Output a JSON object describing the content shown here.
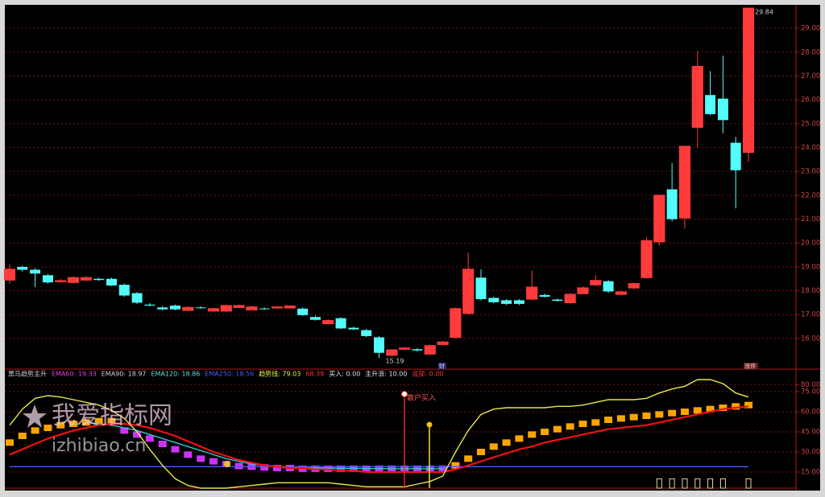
{
  "chart_data": [
    {
      "type": "candlestick",
      "up_color": "#ff3b3b",
      "down_color": "#54fcfc",
      "open": [
        18.45,
        19.0,
        18.88,
        18.65,
        18.38,
        18.35,
        18.45,
        18.5,
        18.5,
        18.25,
        17.9,
        17.42,
        17.3,
        17.38,
        17.18,
        17.3,
        17.15,
        17.15,
        17.3,
        17.2,
        17.26,
        17.28,
        17.28,
        17.25,
        16.9,
        16.62,
        16.85,
        16.45,
        16.35,
        16.05,
        15.3,
        15.55,
        15.55,
        15.35,
        15.75,
        16.05,
        17.05,
        18.55,
        17.7,
        17.6,
        17.6,
        17.65,
        17.82,
        17.63,
        17.5,
        17.88,
        18.25,
        18.4,
        17.85,
        18.12,
        18.55,
        20.05,
        22.25,
        21.05,
        24.85,
        26.2,
        26.05,
        24.2,
        23.8
      ],
      "high": [
        19.1,
        19.05,
        18.95,
        18.7,
        18.5,
        18.6,
        18.6,
        18.55,
        18.55,
        18.3,
        17.95,
        17.48,
        17.35,
        17.42,
        17.35,
        17.35,
        17.3,
        17.42,
        17.42,
        17.38,
        17.3,
        17.36,
        17.4,
        17.3,
        16.95,
        16.8,
        16.9,
        16.5,
        16.4,
        16.1,
        15.55,
        15.65,
        15.6,
        15.75,
        15.9,
        17.3,
        19.6,
        18.9,
        17.75,
        17.65,
        17.65,
        18.85,
        17.88,
        17.68,
        17.9,
        18.18,
        18.65,
        18.45,
        18.0,
        18.35,
        20.25,
        22.0,
        23.35,
        24.05,
        28.05,
        27.2,
        27.85,
        24.45,
        29.84
      ],
      "low": [
        18.3,
        18.8,
        18.15,
        18.3,
        18.35,
        18.3,
        18.42,
        18.42,
        18.2,
        17.75,
        17.45,
        17.35,
        17.18,
        17.18,
        17.15,
        17.25,
        17.12,
        17.12,
        17.28,
        17.18,
        17.2,
        17.25,
        17.25,
        16.95,
        16.75,
        16.58,
        16.4,
        16.35,
        16.05,
        15.19,
        15.25,
        15.5,
        15.45,
        15.3,
        15.72,
        16.0,
        17.0,
        17.6,
        17.48,
        17.4,
        17.4,
        17.6,
        17.72,
        17.55,
        17.45,
        17.85,
        18.2,
        17.92,
        17.8,
        18.08,
        18.5,
        19.9,
        20.9,
        20.6,
        24.0,
        25.35,
        24.6,
        21.45,
        23.4
      ],
      "close": [
        18.9,
        18.88,
        18.72,
        18.35,
        18.42,
        18.55,
        18.55,
        18.45,
        18.22,
        17.8,
        17.5,
        17.38,
        17.22,
        17.22,
        17.3,
        17.28,
        17.25,
        17.38,
        17.38,
        17.32,
        17.24,
        17.32,
        17.36,
        16.98,
        16.78,
        16.75,
        16.42,
        16.38,
        16.1,
        15.4,
        15.52,
        15.6,
        15.5,
        15.7,
        15.85,
        17.25,
        18.9,
        17.65,
        17.52,
        17.45,
        17.45,
        18.15,
        17.75,
        17.58,
        17.85,
        18.12,
        18.43,
        17.97,
        17.95,
        18.3,
        20.1,
        22.0,
        21.0,
        24.05,
        27.4,
        25.4,
        25.15,
        23.05,
        29.84
      ],
      "ylim": [
        14.75,
        29.98
      ],
      "yticks": [
        {
          "value": 16,
          "label": "16.00"
        },
        {
          "value": 17,
          "label": "17.00"
        },
        {
          "value": 18,
          "label": "18.00"
        },
        {
          "value": 19,
          "label": "19.00"
        },
        {
          "value": 20,
          "label": "20.00"
        },
        {
          "value": 21,
          "label": "21.00"
        },
        {
          "value": 22,
          "label": "22.00"
        },
        {
          "value": 23,
          "label": "23.00"
        },
        {
          "value": 24,
          "label": "24.00"
        },
        {
          "value": 25,
          "label": "25.00"
        },
        {
          "value": 26,
          "label": "26.00"
        },
        {
          "value": 27,
          "label": "27.00"
        },
        {
          "value": 28,
          "label": "28.00"
        },
        {
          "value": 29,
          "label": "29.00"
        }
      ],
      "grid": true,
      "annotations": {
        "high": "29.84",
        "low": "15.19",
        "marker": "财",
        "limit": "涨停"
      }
    },
    {
      "type": "indicator",
      "legend_items": [
        {
          "text": "黑马趋势主升",
          "color": "#d0d0d0"
        },
        {
          "text": "EMA60: 19.33",
          "color": "#e040e0"
        },
        {
          "text": "EMA90: 18.97",
          "color": "#d0d0d0"
        },
        {
          "text": "EMA120: 18.86",
          "color": "#66dddd"
        },
        {
          "text": "EMA250: 18.56",
          "color": "#4a5cff"
        },
        {
          "text": "趋势线: 79.03",
          "color": "#f0f050"
        },
        {
          "text": "68.39",
          "color": "#ff3333"
        },
        {
          "text": "买入: 0.00",
          "color": "#e0e0e0"
        },
        {
          "text": "主升浪: 10.00",
          "color": "#e0e0e0"
        },
        {
          "text": "底部: 0.00",
          "color": "#ff3333"
        }
      ],
      "ylim": [
        3,
        90
      ],
      "yticks": [
        {
          "value": 15,
          "label": "15.00"
        },
        {
          "value": 30,
          "label": "30.00"
        },
        {
          "value": 45,
          "label": "45.00"
        },
        {
          "value": 60,
          "label": "60.00"
        },
        {
          "value": 75,
          "label": "75.00"
        },
        {
          "value": 80,
          "label": "80.00"
        }
      ],
      "grid": true,
      "lines": [
        {
          "color": "#4a5cff",
          "values": [
            19,
            19,
            19,
            19,
            19,
            19,
            19,
            19,
            19,
            19,
            19,
            19,
            19,
            19,
            19,
            19,
            19,
            19,
            19,
            19,
            19,
            19,
            19,
            19,
            19,
            19,
            19,
            19,
            19,
            19,
            19,
            19,
            19,
            19,
            19,
            19,
            19,
            19,
            19,
            19,
            19,
            19,
            19,
            19,
            19,
            19,
            19,
            19,
            19,
            19,
            19,
            19,
            19,
            19,
            19,
            19,
            19,
            19,
            19
          ]
        },
        {
          "color": "#33c8c8",
          "values": [
            null,
            null,
            null,
            null,
            null,
            null,
            52,
            51,
            50,
            48,
            46,
            43,
            40,
            37,
            34,
            31,
            28,
            25,
            23,
            21,
            20,
            19,
            18.5,
            18,
            18,
            18,
            17.8,
            17.8,
            17.6,
            17.6,
            17.5,
            17.5,
            17.5,
            17.5,
            17.5,
            null,
            null,
            null,
            null,
            null,
            null,
            null,
            null,
            null,
            null,
            null,
            null,
            null,
            null,
            null,
            null,
            null,
            null,
            null,
            null,
            null,
            null,
            null,
            null
          ]
        },
        {
          "color": "#ee1111",
          "values": [
            28,
            32,
            36,
            40,
            43,
            46,
            48,
            50,
            51,
            51,
            50,
            48,
            45,
            42,
            38,
            34,
            30,
            27,
            24,
            22,
            20,
            19,
            18,
            18,
            17,
            17,
            16,
            16,
            15,
            15,
            15,
            15,
            15,
            15,
            15,
            17,
            20,
            23,
            26,
            29,
            32,
            34,
            37,
            39,
            41,
            43,
            45,
            47,
            48,
            49,
            50,
            52,
            54,
            56,
            58,
            60,
            62,
            63,
            64
          ]
        },
        {
          "color": "#e8e84a",
          "values": [
            50,
            62,
            70,
            72,
            71,
            69,
            67,
            65,
            61,
            55,
            45,
            32,
            20,
            10,
            5,
            3,
            3,
            3,
            4,
            5,
            6,
            7,
            7,
            7,
            7,
            7,
            6,
            5,
            4,
            4,
            4,
            4,
            6,
            8,
            12,
            30,
            46,
            58,
            62,
            63,
            63,
            63,
            63,
            64,
            64,
            65,
            67,
            69,
            69,
            69,
            70,
            74,
            77,
            79,
            84,
            84,
            81,
            74,
            71
          ]
        }
      ],
      "blocks": [
        {
          "color": "#ffa500",
          "values": [
            37,
            42,
            46,
            48,
            50,
            51,
            52,
            53,
            53,
            null,
            null,
            null,
            null,
            null,
            null,
            null,
            null,
            null,
            null,
            null,
            null,
            null,
            null,
            null,
            null,
            null,
            null,
            null,
            null,
            null,
            null,
            null,
            null,
            null,
            null,
            20,
            25,
            30,
            34,
            37,
            40,
            43,
            45,
            47,
            49,
            51,
            52,
            54,
            55,
            56,
            57,
            58,
            59,
            60,
            61,
            62,
            63,
            64,
            65
          ]
        },
        {
          "color": "#cc33ff",
          "values": [
            null,
            null,
            null,
            null,
            null,
            null,
            null,
            null,
            null,
            46,
            43,
            40,
            36,
            32,
            28,
            25,
            23,
            21,
            19.5,
            19,
            18.5,
            18,
            18,
            17.5,
            17.5,
            17.5,
            17.5,
            17.5,
            17.5,
            17.5,
            17.5,
            17.5,
            17.5,
            17.5,
            17.5,
            null,
            null,
            null,
            null,
            null,
            null,
            null,
            null,
            null,
            null,
            null,
            null,
            null,
            null,
            null,
            null,
            null,
            null,
            null,
            null,
            null,
            null,
            null,
            null
          ]
        }
      ],
      "signals": {
        "color": "#e8d8a0",
        "values": [
          null,
          null,
          null,
          null,
          null,
          null,
          null,
          null,
          null,
          null,
          null,
          null,
          null,
          null,
          null,
          null,
          null,
          null,
          null,
          null,
          null,
          null,
          null,
          null,
          null,
          null,
          null,
          null,
          null,
          null,
          null,
          null,
          null,
          null,
          null,
          null,
          null,
          null,
          null,
          null,
          null,
          null,
          null,
          null,
          null,
          null,
          null,
          null,
          null,
          null,
          null,
          10,
          10,
          10,
          10,
          10,
          10,
          null,
          10
        ]
      },
      "signal_label": "散户买入"
    }
  ],
  "watermark": {
    "title": "我爱指标网",
    "url": "izhibiao.cn"
  }
}
